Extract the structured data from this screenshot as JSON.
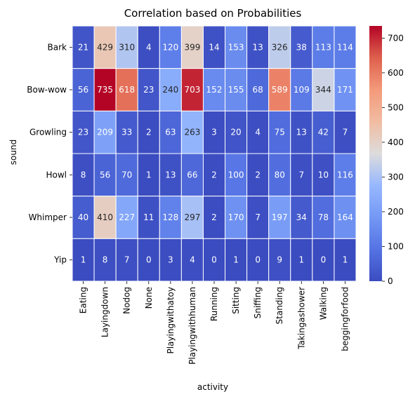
{
  "chart_data": {
    "type": "heatmap",
    "title": "Correlation based on Probabilities",
    "xlabel": "activity",
    "ylabel": "sound",
    "x_categories": [
      "Eating",
      "Layingdown",
      "Nodog",
      "None",
      "Playingwithatoy",
      "Playingwithhuman",
      "Running",
      "Sitting",
      "Sniffing",
      "Standing",
      "Takingashower",
      "Walking",
      "beggingforfood"
    ],
    "y_categories": [
      "Bark",
      "Bow-wow",
      "Growling",
      "Howl",
      "Whimper",
      "Yip"
    ],
    "values": [
      [
        21,
        429,
        310,
        4,
        120,
        399,
        14,
        153,
        13,
        326,
        38,
        113,
        114
      ],
      [
        56,
        735,
        618,
        23,
        240,
        703,
        152,
        155,
        68,
        589,
        109,
        344,
        171
      ],
      [
        23,
        209,
        33,
        2,
        63,
        263,
        3,
        20,
        4,
        75,
        13,
        42,
        7
      ],
      [
        8,
        56,
        70,
        1,
        13,
        66,
        2,
        100,
        2,
        80,
        7,
        10,
        116
      ],
      [
        40,
        410,
        227,
        11,
        128,
        297,
        2,
        170,
        7,
        197,
        34,
        78,
        164
      ],
      [
        1,
        8,
        7,
        0,
        3,
        4,
        0,
        1,
        0,
        9,
        1,
        0,
        1
      ]
    ],
    "colormap": "coolwarm",
    "vmin": 0,
    "vmax": 735,
    "colorbar_ticks": [
      0,
      100,
      200,
      300,
      400,
      500,
      600,
      700
    ],
    "annotated": true,
    "cell_border_color": "#ffffff"
  }
}
